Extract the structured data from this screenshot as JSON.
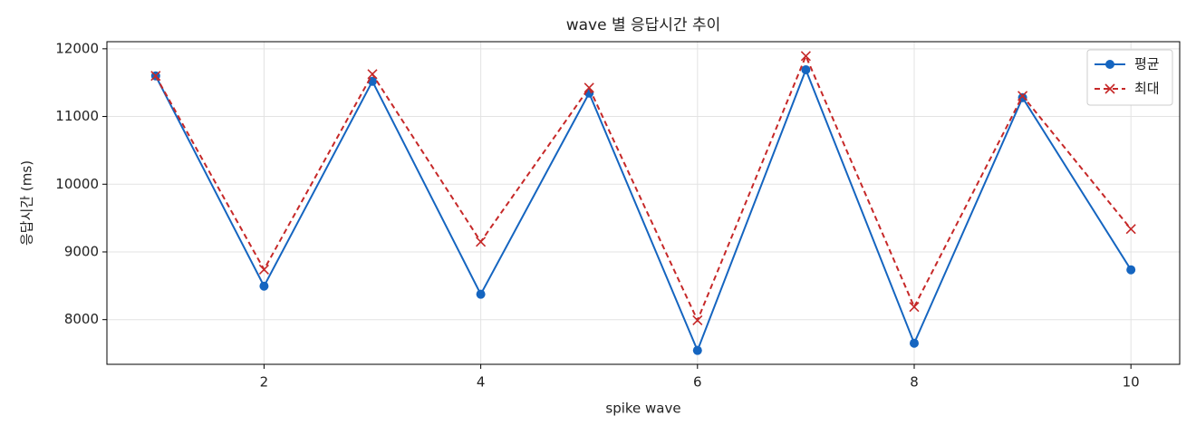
{
  "chart_data": {
    "type": "line",
    "title": "wave 별 응답시간 추이",
    "x_label": "spike wave",
    "y_label": "응답시간 (ms)",
    "x": [
      1,
      2,
      3,
      4,
      5,
      6,
      7,
      8,
      9,
      10
    ],
    "series": [
      {
        "name": "평균",
        "color": "#1565c0",
        "marker": "circle",
        "dashed": false,
        "values": [
          11600,
          8495,
          11520,
          8375,
          11345,
          7545,
          11690,
          7652,
          11278,
          8736
        ]
      },
      {
        "name": "최대",
        "color": "#c62828",
        "marker": "cross",
        "dashed": true,
        "values": [
          11600,
          8740,
          11625,
          9150,
          11425,
          7990,
          11893,
          8187,
          11305,
          9338
        ]
      }
    ],
    "xlim": [
      0.55,
      10.45
    ],
    "xticks": [
      2,
      4,
      6,
      8,
      10
    ],
    "ylim": [
      7340,
      12105
    ],
    "yticks": [
      8000,
      9000,
      10000,
      11000,
      12000
    ],
    "grid": true,
    "legend": "upper right"
  }
}
